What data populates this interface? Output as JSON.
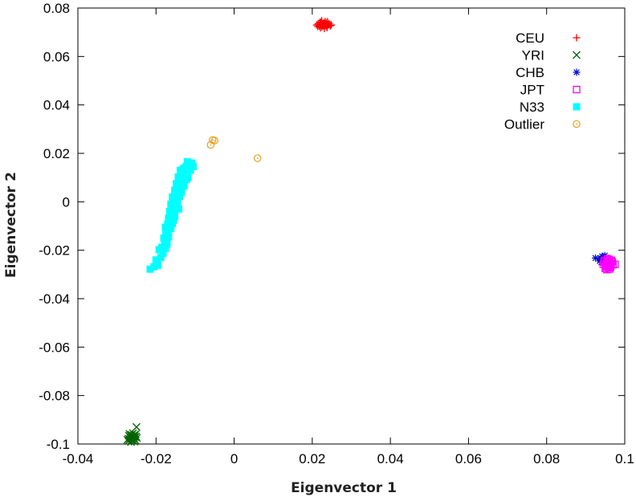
{
  "chart_data": {
    "type": "scatter",
    "title": "",
    "xlabel": "Eigenvector 1",
    "ylabel": "Eigenvector 2",
    "xlim": [
      -0.04,
      0.1
    ],
    "ylim": [
      -0.1,
      0.08
    ],
    "xticks": [
      -0.04,
      -0.02,
      0,
      0.02,
      0.04,
      0.06,
      0.08,
      0.1
    ],
    "xtick_labels": [
      "-0.04",
      "-0.02",
      "0",
      "0.02",
      "0.04",
      "0.06",
      "0.08",
      "0.1"
    ],
    "yticks": [
      -0.1,
      -0.08,
      -0.06,
      -0.04,
      -0.02,
      0,
      0.02,
      0.04,
      0.06,
      0.08
    ],
    "ytick_labels": [
      "-0.1",
      "-0.08",
      "-0.06",
      "-0.04",
      "-0.02",
      "0",
      "0.02",
      "0.04",
      "0.06",
      "0.08"
    ],
    "grid": false,
    "legend_position": "top-right",
    "series": [
      {
        "name": "CEU",
        "marker": "plus",
        "color": "#ff0000",
        "points": [
          [
            0.0215,
            0.0735
          ],
          [
            0.0222,
            0.0742
          ],
          [
            0.023,
            0.0728
          ],
          [
            0.0236,
            0.0738
          ],
          [
            0.0225,
            0.0722
          ],
          [
            0.0241,
            0.0731
          ],
          [
            0.0218,
            0.0725
          ],
          [
            0.0233,
            0.0745
          ],
          [
            0.0228,
            0.0733
          ],
          [
            0.0246,
            0.0726
          ],
          [
            0.0211,
            0.073
          ],
          [
            0.0238,
            0.0719
          ],
          [
            0.0224,
            0.0748
          ],
          [
            0.0231,
            0.0715
          ],
          [
            0.0219,
            0.0741
          ],
          [
            0.0243,
            0.0736
          ],
          [
            0.0227,
            0.0727
          ],
          [
            0.0235,
            0.0732
          ],
          [
            0.0221,
            0.0718
          ],
          [
            0.0239,
            0.0744
          ],
          [
            0.0229,
            0.0739
          ],
          [
            0.0214,
            0.0724
          ],
          [
            0.0237,
            0.0723
          ],
          [
            0.0226,
            0.0736
          ],
          [
            0.0249,
            0.073
          ]
        ]
      },
      {
        "name": "YRI",
        "marker": "cross",
        "color": "#006400",
        "points": [
          [
            -0.0265,
            -0.0965
          ],
          [
            -0.0258,
            -0.0972
          ],
          [
            -0.027,
            -0.0978
          ],
          [
            -0.0252,
            -0.096
          ],
          [
            -0.0262,
            -0.0985
          ],
          [
            -0.0255,
            -0.099
          ],
          [
            -0.0268,
            -0.0958
          ],
          [
            -0.0249,
            -0.0975
          ],
          [
            -0.026,
            -0.0968
          ],
          [
            -0.0273,
            -0.0982
          ],
          [
            -0.0256,
            -0.098
          ],
          [
            -0.0264,
            -0.0992
          ],
          [
            -0.0251,
            -0.0969
          ],
          [
            -0.0266,
            -0.0973
          ],
          [
            -0.0259,
            -0.0955
          ],
          [
            -0.0253,
            -0.0985
          ],
          [
            -0.0269,
            -0.0966
          ],
          [
            -0.0257,
            -0.0976
          ],
          [
            -0.0262,
            -0.0962
          ],
          [
            -0.025,
            -0.093
          ],
          [
            -0.0271,
            -0.0988
          ],
          [
            -0.0254,
            -0.0971
          ],
          [
            -0.0263,
            -0.0979
          ],
          [
            -0.0261,
            -0.097
          ],
          [
            -0.0256,
            -0.0963
          ]
        ]
      },
      {
        "name": "CHB",
        "marker": "star",
        "color": "#0000cc",
        "points": [
          [
            0.0925,
            -0.0232
          ],
          [
            0.0938,
            -0.0238
          ],
          [
            0.0945,
            -0.0228
          ],
          [
            0.095,
            -0.0242
          ],
          [
            0.0942,
            -0.0225
          ],
          [
            0.0955,
            -0.0235
          ],
          [
            0.0948,
            -0.0248
          ],
          [
            0.0936,
            -0.0244
          ],
          [
            0.0952,
            -0.023
          ],
          [
            0.0946,
            -0.0236
          ],
          [
            0.0958,
            -0.0241
          ],
          [
            0.094,
            -0.025
          ],
          [
            0.0949,
            -0.0222
          ],
          [
            0.0944,
            -0.0239
          ],
          [
            0.0953,
            -0.0246
          ],
          [
            0.0939,
            -0.0233
          ]
        ]
      },
      {
        "name": "JPT",
        "marker": "open-square",
        "color": "#ff00ff",
        "points": [
          [
            0.0948,
            -0.0242
          ],
          [
            0.0955,
            -0.025
          ],
          [
            0.096,
            -0.0238
          ],
          [
            0.0952,
            -0.0262
          ],
          [
            0.0958,
            -0.027
          ],
          [
            0.0965,
            -0.0255
          ],
          [
            0.095,
            -0.0275
          ],
          [
            0.0962,
            -0.0245
          ],
          [
            0.0957,
            -0.0265
          ],
          [
            0.0945,
            -0.0258
          ],
          [
            0.0968,
            -0.0248
          ],
          [
            0.0954,
            -0.028
          ],
          [
            0.0963,
            -0.0272
          ],
          [
            0.097,
            -0.026
          ],
          [
            0.0959,
            -0.0256
          ],
          [
            0.0947,
            -0.0248
          ],
          [
            0.0951,
            -0.0268
          ],
          [
            0.0966,
            -0.0242
          ],
          [
            0.0956,
            -0.0235
          ],
          [
            0.0961,
            -0.0278
          ],
          [
            0.0975,
            -0.0258
          ],
          [
            0.0953,
            -0.0252
          ],
          [
            0.0964,
            -0.0266
          ],
          [
            0.0958,
            -0.0244
          ]
        ]
      },
      {
        "name": "N33",
        "marker": "filled-square",
        "color": "#00ffff",
        "points": [
          [
            -0.0215,
            -0.0278
          ],
          [
            -0.0205,
            -0.0268
          ],
          [
            -0.0195,
            -0.0262
          ],
          [
            -0.02,
            -0.024
          ],
          [
            -0.0188,
            -0.023
          ],
          [
            -0.0182,
            -0.0212
          ],
          [
            -0.0176,
            -0.0192
          ],
          [
            -0.0192,
            -0.0198
          ],
          [
            -0.0185,
            -0.0188
          ],
          [
            -0.0178,
            -0.017
          ],
          [
            -0.0172,
            -0.0158
          ],
          [
            -0.0168,
            -0.0145
          ],
          [
            -0.018,
            -0.015
          ],
          [
            -0.0175,
            -0.0135
          ],
          [
            -0.017,
            -0.0125
          ],
          [
            -0.0165,
            -0.0112
          ],
          [
            -0.0176,
            -0.0105
          ],
          [
            -0.017,
            -0.0092
          ],
          [
            -0.0162,
            -0.0082
          ],
          [
            -0.0168,
            -0.0068
          ],
          [
            -0.016,
            -0.006
          ],
          [
            -0.0155,
            -0.0048
          ],
          [
            -0.0165,
            -0.004
          ],
          [
            -0.0158,
            -0.0028
          ],
          [
            -0.015,
            -0.0018
          ],
          [
            -0.0162,
            -0.001
          ],
          [
            -0.0155,
            0.0002
          ],
          [
            -0.0148,
            0.0012
          ],
          [
            -0.0158,
            0.002
          ],
          [
            -0.015,
            0.003
          ],
          [
            -0.0143,
            0.004
          ],
          [
            -0.0152,
            0.0048
          ],
          [
            -0.0145,
            0.0058
          ],
          [
            -0.0138,
            0.0066
          ],
          [
            -0.0148,
            0.0075
          ],
          [
            -0.014,
            0.0085
          ],
          [
            -0.0133,
            0.0095
          ],
          [
            -0.0143,
            0.0102
          ],
          [
            -0.0135,
            0.0112
          ],
          [
            -0.0128,
            0.012
          ],
          [
            -0.0138,
            0.013
          ],
          [
            -0.013,
            0.0138
          ],
          [
            -0.0123,
            0.0145
          ],
          [
            -0.0118,
            0.0155
          ],
          [
            -0.0112,
            0.015
          ],
          [
            -0.0108,
            0.016
          ],
          [
            -0.012,
            0.0165
          ],
          [
            -0.0128,
            0.0108
          ],
          [
            -0.0122,
            0.0092
          ],
          [
            -0.0132,
            0.0078
          ],
          [
            -0.0135,
            0.0055
          ],
          [
            -0.0128,
            0.0065
          ],
          [
            -0.014,
            0.0022
          ],
          [
            -0.0135,
            0.004
          ],
          [
            -0.0145,
            -0.0005
          ],
          [
            -0.0142,
            -0.003
          ],
          [
            -0.0152,
            -0.006
          ],
          [
            -0.0158,
            -0.009
          ],
          [
            -0.0162,
            -0.011
          ],
          [
            -0.0155,
            -0.0075
          ],
          [
            -0.0112,
            0.013
          ],
          [
            -0.0105,
            0.0145
          ],
          [
            -0.0118,
            0.01
          ],
          [
            -0.0172,
            -0.0175
          ],
          [
            -0.0198,
            -0.0252
          ]
        ]
      },
      {
        "name": "Outlier",
        "marker": "open-circle",
        "color": "#e6a020",
        "points": [
          [
            -0.0055,
            0.0255
          ],
          [
            -0.006,
            0.0235
          ],
          [
            -0.005,
            0.0253
          ],
          [
            0.006,
            0.018
          ]
        ]
      }
    ]
  }
}
